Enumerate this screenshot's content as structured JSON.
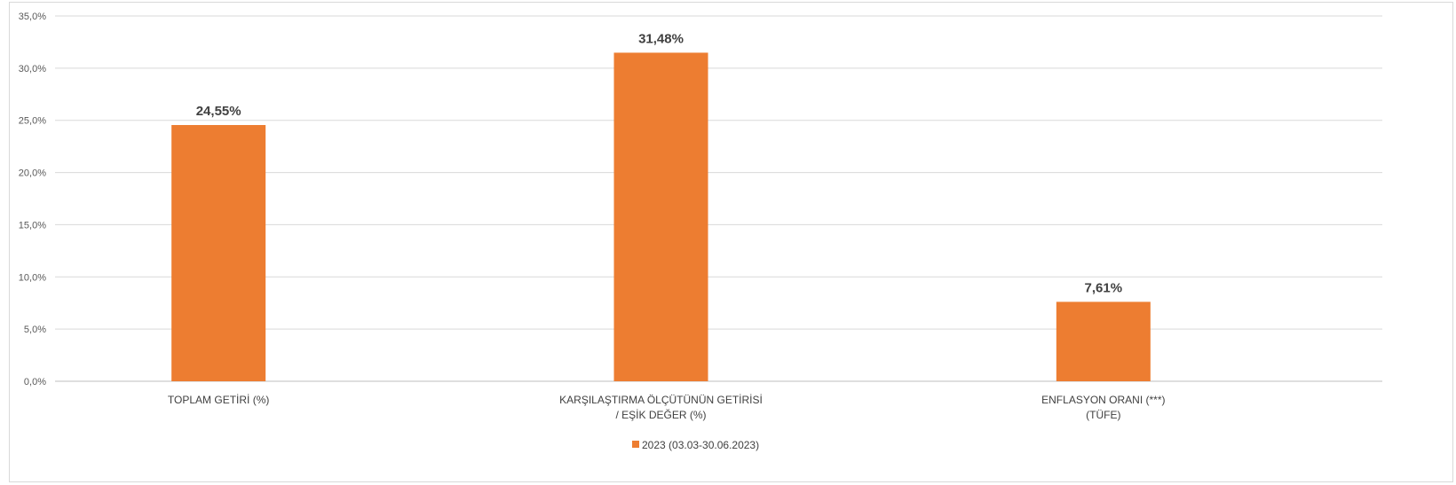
{
  "chart_data": {
    "type": "bar",
    "categories": [
      [
        "TOPLAM GETİRİ (%)"
      ],
      [
        "KARŞILAŞTIRMA ÖLÇÜTÜNÜN GETİRİSİ",
        "/ EŞİK DEĞER (%)"
      ],
      [
        "ENFLASYON ORANI (***)",
        "(TÜFE)"
      ]
    ],
    "series": [
      {
        "name": "2023 (03.03-30.06.2023)",
        "values": [
          24.55,
          31.48,
          7.61
        ],
        "data_labels": [
          "24,55%",
          "31,48%",
          "7,61%"
        ],
        "color": "#ed7d31"
      }
    ],
    "ylim": [
      0,
      35
    ],
    "yticks": [
      0,
      5,
      10,
      15,
      20,
      25,
      30,
      35
    ],
    "ytick_labels": [
      "0,0%",
      "5,0%",
      "10,0%",
      "15,0%",
      "20,0%",
      "25,0%",
      "30,0%",
      "35,0%"
    ],
    "grid": true,
    "legend": "bottom-center",
    "colors": {
      "bar": "#ed7d31",
      "grid": "#d9d9d9",
      "axis": "#bfbfbf",
      "text": "#404040"
    }
  }
}
